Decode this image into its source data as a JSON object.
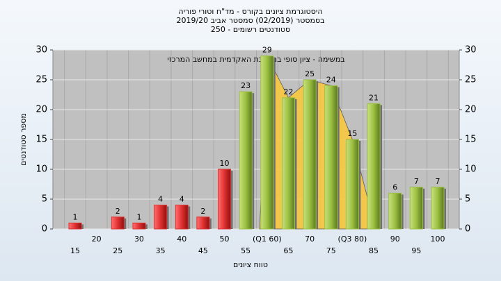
{
  "chart_data": {
    "type": "bar",
    "title": [
      "היסטוגרמת ציונים בקורס - מד\"ח וטורי פוריה",
      "בסמסטר (02/2019) סמסטר אביב 2019/20",
      "סטודנטים רשומים - 250"
    ],
    "annotation": "במשימה - ציון סופי במערכת האקדמית במחשב המרכזי",
    "x_label": "טווח ציונים",
    "y_label": "מספר סטודנטים",
    "categories": [
      "15",
      "20",
      "25",
      "30",
      "35",
      "40",
      "45",
      "50",
      "55",
      "(Q1 60)",
      "65",
      "70",
      "75",
      "(Q3 80)",
      "85",
      "90",
      "95",
      "100"
    ],
    "values": [
      1,
      0,
      2,
      1,
      4,
      4,
      2,
      10,
      23,
      29,
      22,
      25,
      24,
      15,
      21,
      6,
      7,
      7
    ],
    "colors": [
      "#e03030",
      "#e03030",
      "#e03030",
      "#e03030",
      "#e03030",
      "#e03030",
      "#e03030",
      "#e03030",
      "#9cc040",
      "#9cc040",
      "#9cc040",
      "#9cc040",
      "#9cc040",
      "#9cc040",
      "#9cc040",
      "#9cc040",
      "#9cc040",
      "#9cc040"
    ],
    "ylim": [
      0,
      30
    ],
    "yticks": [
      0,
      5,
      10,
      15,
      20,
      25,
      30
    ],
    "y2lim": [
      0,
      30
    ],
    "y2ticks": [
      0,
      5,
      10,
      15,
      20,
      25,
      30
    ],
    "grid": true
  }
}
